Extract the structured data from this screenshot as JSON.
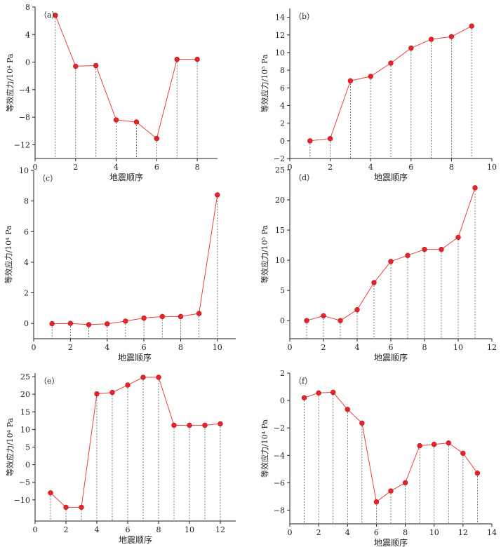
{
  "chart_data": [
    {
      "type": "line",
      "label": "（a）",
      "xlabel": "地震顺序",
      "ylabel": "等效应力/10⁴ Pa",
      "xlim": [
        0,
        9
      ],
      "ylim": [
        -14,
        8
      ],
      "xticks": [
        0,
        2,
        4,
        6,
        8
      ],
      "yticks": [
        -12,
        -8,
        -4,
        0,
        4,
        8
      ],
      "x": [
        1,
        2,
        3,
        4,
        5,
        6,
        7,
        8
      ],
      "values": [
        6.8,
        -0.6,
        -0.5,
        -8.4,
        -8.7,
        -11.1,
        0.4,
        0.4
      ]
    },
    {
      "type": "line",
      "label": "（b）",
      "xlabel": "地震顺序",
      "ylabel": "等效应力/10⁵ Pa",
      "xlim": [
        0,
        10
      ],
      "ylim": [
        -2,
        15
      ],
      "xticks": [
        0,
        2,
        4,
        6,
        8,
        10
      ],
      "yticks": [
        -2,
        0,
        2,
        4,
        6,
        8,
        10,
        12,
        14
      ],
      "x": [
        1,
        2,
        3,
        4,
        5,
        6,
        7,
        8,
        9
      ],
      "values": [
        0.0,
        0.25,
        6.8,
        7.3,
        8.8,
        10.5,
        11.5,
        11.8,
        13.0
      ]
    },
    {
      "type": "line",
      "label": "（c）",
      "xlabel": "地震顺序",
      "ylabel": "等效应力/10⁴ Pa",
      "xlim": [
        0,
        11
      ],
      "ylim": [
        -1,
        10
      ],
      "xticks": [
        0,
        2,
        4,
        6,
        8,
        10
      ],
      "yticks": [
        0,
        2,
        4,
        6,
        8,
        10
      ],
      "x": [
        1,
        2,
        3,
        4,
        5,
        6,
        7,
        8,
        9,
        10
      ],
      "values": [
        -0.02,
        0.0,
        -0.08,
        -0.03,
        0.15,
        0.35,
        0.45,
        0.45,
        0.65,
        8.4
      ]
    },
    {
      "type": "line",
      "label": "（d）",
      "xlabel": "地震顺序",
      "ylabel": "等效应力/10⁵ Pa",
      "xlim": [
        0,
        12
      ],
      "ylim": [
        -3,
        25
      ],
      "xticks": [
        0,
        2,
        4,
        6,
        8,
        10,
        12
      ],
      "yticks": [
        0,
        5,
        10,
        15,
        20,
        25
      ],
      "x": [
        1,
        2,
        3,
        4,
        5,
        6,
        7,
        8,
        9,
        10,
        11
      ],
      "values": [
        0.0,
        0.8,
        0.0,
        1.8,
        6.3,
        9.8,
        10.8,
        11.8,
        11.8,
        13.8,
        22.0
      ]
    },
    {
      "type": "line",
      "label": "（e）",
      "xlabel": "地震顺序",
      "ylabel": "等效应力/10⁴ Pa",
      "xlim": [
        0,
        13
      ],
      "ylim": [
        -16,
        26
      ],
      "xticks": [
        0,
        2,
        4,
        6,
        8,
        10,
        12
      ],
      "yticks": [
        -10,
        -5,
        0,
        5,
        10,
        15,
        20,
        25
      ],
      "x": [
        1,
        2,
        3,
        4,
        5,
        6,
        7,
        8,
        9,
        10,
        11,
        12
      ],
      "values": [
        -8.0,
        -12.1,
        -12.1,
        20.1,
        20.5,
        22.6,
        24.8,
        24.8,
        11.2,
        11.2,
        11.2,
        11.6
      ]
    },
    {
      "type": "line",
      "label": "（f）",
      "xlabel": "地震顺序",
      "ylabel": "等效应力/10⁴ Pa",
      "xlim": [
        0,
        14
      ],
      "ylim": [
        -9,
        2
      ],
      "xticks": [
        0,
        2,
        4,
        6,
        8,
        10,
        12,
        14
      ],
      "yticks": [
        -8,
        -6,
        -4,
        -2,
        0,
        2
      ],
      "x": [
        1,
        2,
        3,
        4,
        5,
        6,
        7,
        8,
        9,
        10,
        11,
        12,
        13
      ],
      "values": [
        0.2,
        0.55,
        0.6,
        -0.65,
        -1.65,
        -7.4,
        -6.6,
        -6.0,
        -3.3,
        -3.2,
        -3.1,
        -3.85,
        -5.3
      ]
    }
  ]
}
